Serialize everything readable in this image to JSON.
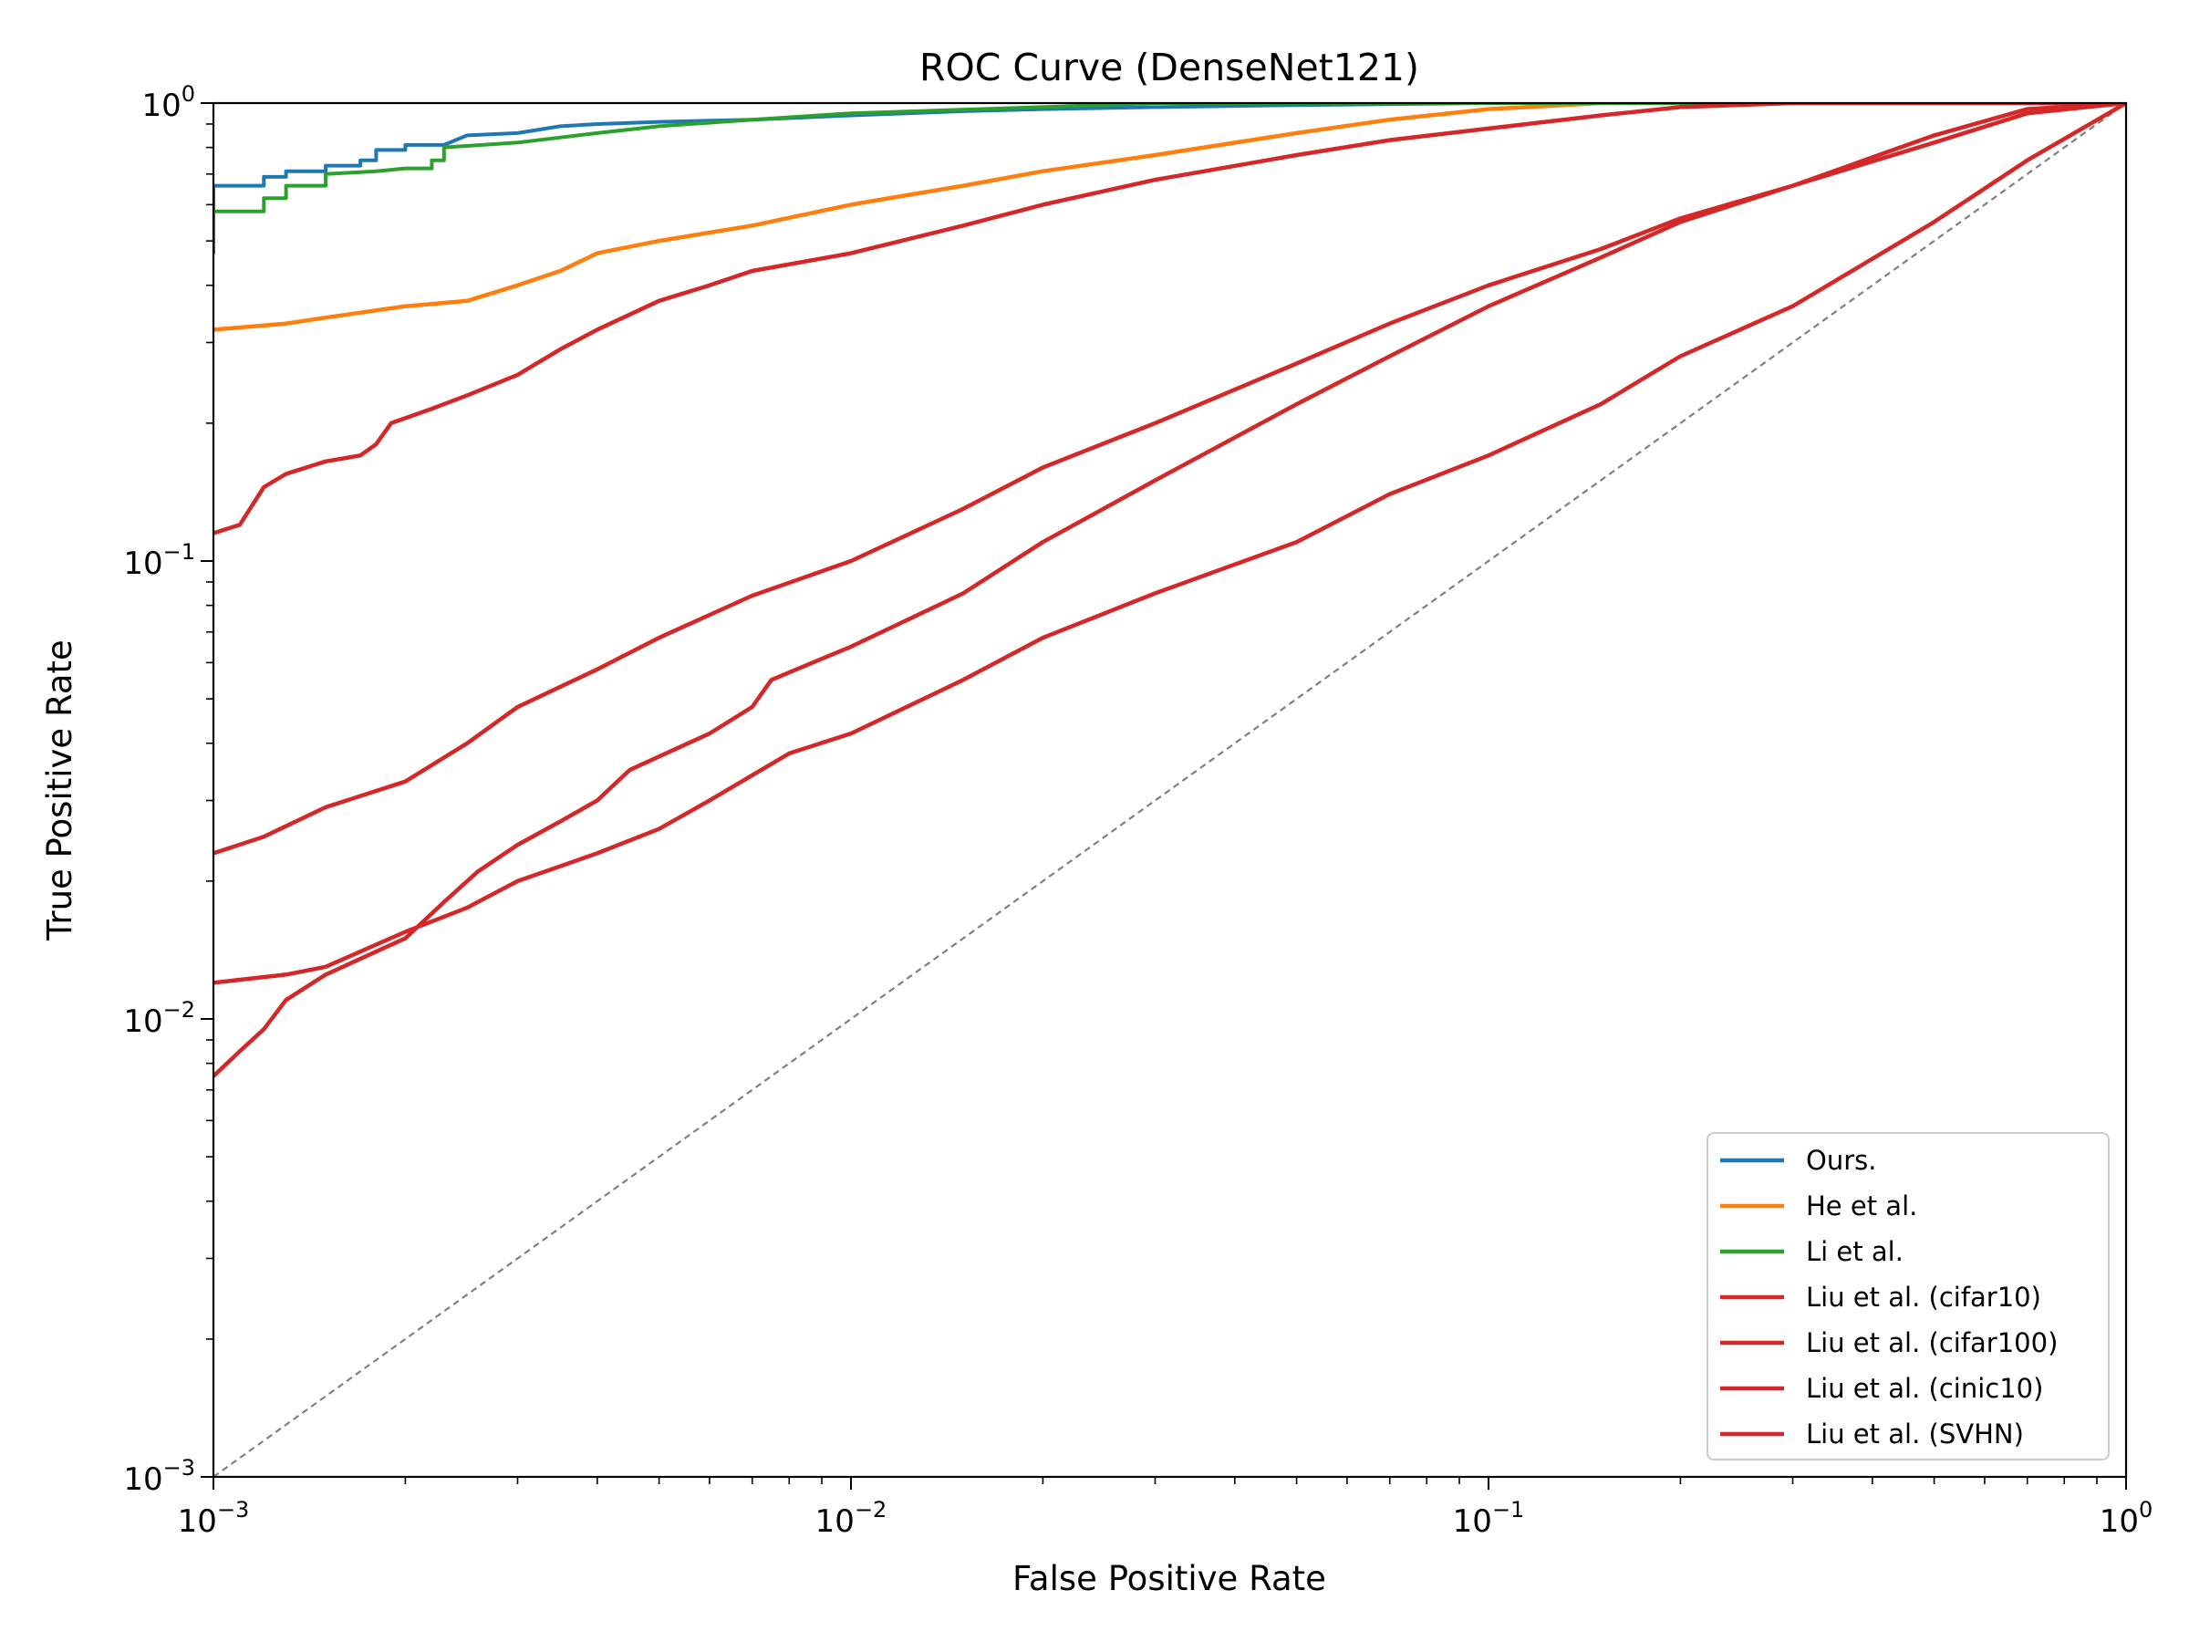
{
  "chart_data": {
    "type": "line",
    "title": "ROC Curve (DenseNet121)",
    "xlabel": "False Positive Rate",
    "ylabel": "True Positive Rate",
    "xscale": "log",
    "yscale": "log",
    "xlim": [
      0.001,
      1
    ],
    "ylim": [
      0.001,
      1
    ],
    "grid": false,
    "legend_position": "lower-right",
    "x_ticks": [
      {
        "base": "10",
        "exp": "−3",
        "value": 0.001
      },
      {
        "base": "10",
        "exp": "−2",
        "value": 0.01
      },
      {
        "base": "10",
        "exp": "−1",
        "value": 0.1
      },
      {
        "base": "10",
        "exp": "0",
        "value": 1
      }
    ],
    "y_ticks": [
      {
        "base": "10",
        "exp": "−3",
        "value": 0.001
      },
      {
        "base": "10",
        "exp": "−2",
        "value": 0.01
      },
      {
        "base": "10",
        "exp": "−1",
        "value": 0.1
      },
      {
        "base": "10",
        "exp": "0",
        "value": 1
      }
    ],
    "diagonal": {
      "color": "#808080",
      "style": "dashed"
    },
    "series": [
      {
        "name": "Ours.",
        "color": "#1f77b4",
        "step": true,
        "points": [
          [
            0.001,
            0.5
          ],
          [
            0.001,
            0.66
          ],
          [
            0.0012,
            0.66
          ],
          [
            0.0012,
            0.69
          ],
          [
            0.0013,
            0.69
          ],
          [
            0.0013,
            0.71
          ],
          [
            0.0015,
            0.71
          ],
          [
            0.0015,
            0.73
          ],
          [
            0.0017,
            0.73
          ],
          [
            0.0017,
            0.75
          ],
          [
            0.0018,
            0.75
          ],
          [
            0.0018,
            0.79
          ],
          [
            0.002,
            0.79
          ],
          [
            0.002,
            0.81
          ],
          [
            0.0023,
            0.81
          ],
          [
            0.0025,
            0.85
          ],
          [
            0.003,
            0.86
          ],
          [
            0.0035,
            0.89
          ],
          [
            0.004,
            0.9
          ],
          [
            0.005,
            0.91
          ],
          [
            0.007,
            0.92
          ],
          [
            0.01,
            0.94
          ],
          [
            0.015,
            0.96
          ],
          [
            0.02,
            0.97
          ],
          [
            0.03,
            0.98
          ],
          [
            0.05,
            0.99
          ],
          [
            0.1,
            1.0
          ],
          [
            1,
            1.0
          ]
        ]
      },
      {
        "name": "He et al.",
        "color": "#ff7f0e",
        "step": false,
        "points": [
          [
            0.001,
            0.32
          ],
          [
            0.0013,
            0.33
          ],
          [
            0.0015,
            0.34
          ],
          [
            0.002,
            0.36
          ],
          [
            0.0025,
            0.37
          ],
          [
            0.003,
            0.4
          ],
          [
            0.0035,
            0.43
          ],
          [
            0.004,
            0.47
          ],
          [
            0.005,
            0.5
          ],
          [
            0.007,
            0.54
          ],
          [
            0.01,
            0.6
          ],
          [
            0.015,
            0.66
          ],
          [
            0.02,
            0.71
          ],
          [
            0.03,
            0.77
          ],
          [
            0.05,
            0.86
          ],
          [
            0.07,
            0.92
          ],
          [
            0.1,
            0.97
          ],
          [
            0.15,
            1.0
          ],
          [
            1,
            1.0
          ]
        ]
      },
      {
        "name": "Li et al.",
        "color": "#2ca02c",
        "step": true,
        "points": [
          [
            0.001,
            0.47
          ],
          [
            0.001,
            0.58
          ],
          [
            0.0012,
            0.58
          ],
          [
            0.0012,
            0.62
          ],
          [
            0.0013,
            0.62
          ],
          [
            0.0013,
            0.66
          ],
          [
            0.0015,
            0.66
          ],
          [
            0.0015,
            0.7
          ],
          [
            0.0018,
            0.71
          ],
          [
            0.002,
            0.72
          ],
          [
            0.0022,
            0.72
          ],
          [
            0.0022,
            0.75
          ],
          [
            0.0023,
            0.75
          ],
          [
            0.0023,
            0.8
          ],
          [
            0.003,
            0.82
          ],
          [
            0.004,
            0.86
          ],
          [
            0.005,
            0.89
          ],
          [
            0.007,
            0.92
          ],
          [
            0.01,
            0.95
          ],
          [
            0.02,
            0.98
          ],
          [
            0.03,
            1.0
          ],
          [
            1,
            1.0
          ]
        ]
      },
      {
        "name": "Liu et al. (cifar10)",
        "color": "#d62728",
        "step": false,
        "points": [
          [
            0.001,
            0.115
          ],
          [
            0.0011,
            0.12
          ],
          [
            0.0012,
            0.145
          ],
          [
            0.0013,
            0.155
          ],
          [
            0.0015,
            0.165
          ],
          [
            0.0017,
            0.17
          ],
          [
            0.0018,
            0.18
          ],
          [
            0.0019,
            0.2
          ],
          [
            0.0022,
            0.215
          ],
          [
            0.0025,
            0.23
          ],
          [
            0.003,
            0.255
          ],
          [
            0.0035,
            0.29
          ],
          [
            0.004,
            0.32
          ],
          [
            0.005,
            0.37
          ],
          [
            0.006,
            0.4
          ],
          [
            0.007,
            0.43
          ],
          [
            0.01,
            0.47
          ],
          [
            0.015,
            0.54
          ],
          [
            0.02,
            0.6
          ],
          [
            0.03,
            0.68
          ],
          [
            0.05,
            0.77
          ],
          [
            0.07,
            0.83
          ],
          [
            0.1,
            0.88
          ],
          [
            0.15,
            0.94
          ],
          [
            0.2,
            0.98
          ],
          [
            0.3,
            1.0
          ],
          [
            1,
            1.0
          ]
        ]
      },
      {
        "name": "Liu et al. (cifar100)",
        "color": "#d62728",
        "step": false,
        "points": [
          [
            0.001,
            0.023
          ],
          [
            0.0012,
            0.025
          ],
          [
            0.0015,
            0.029
          ],
          [
            0.002,
            0.033
          ],
          [
            0.0025,
            0.04
          ],
          [
            0.003,
            0.048
          ],
          [
            0.004,
            0.058
          ],
          [
            0.005,
            0.068
          ],
          [
            0.007,
            0.084
          ],
          [
            0.01,
            0.1
          ],
          [
            0.015,
            0.13
          ],
          [
            0.02,
            0.16
          ],
          [
            0.03,
            0.2
          ],
          [
            0.05,
            0.27
          ],
          [
            0.07,
            0.33
          ],
          [
            0.1,
            0.4
          ],
          [
            0.15,
            0.48
          ],
          [
            0.2,
            0.56
          ],
          [
            0.3,
            0.66
          ],
          [
            0.5,
            0.82
          ],
          [
            0.7,
            0.95
          ],
          [
            1,
            1.0
          ]
        ]
      },
      {
        "name": "Liu et al. (cinic10)",
        "color": "#d62728",
        "step": false,
        "points": [
          [
            0.001,
            0.0075
          ],
          [
            0.0011,
            0.0085
          ],
          [
            0.0012,
            0.0095
          ],
          [
            0.0013,
            0.011
          ],
          [
            0.0015,
            0.0125
          ],
          [
            0.002,
            0.015
          ],
          [
            0.0023,
            0.018
          ],
          [
            0.0026,
            0.021
          ],
          [
            0.003,
            0.024
          ],
          [
            0.0035,
            0.027
          ],
          [
            0.004,
            0.03
          ],
          [
            0.0045,
            0.035
          ],
          [
            0.006,
            0.042
          ],
          [
            0.007,
            0.048
          ],
          [
            0.0075,
            0.055
          ],
          [
            0.01,
            0.065
          ],
          [
            0.015,
            0.085
          ],
          [
            0.02,
            0.11
          ],
          [
            0.03,
            0.15
          ],
          [
            0.05,
            0.22
          ],
          [
            0.07,
            0.28
          ],
          [
            0.1,
            0.36
          ],
          [
            0.15,
            0.46
          ],
          [
            0.2,
            0.55
          ],
          [
            0.3,
            0.66
          ],
          [
            0.5,
            0.85
          ],
          [
            0.7,
            0.97
          ],
          [
            1,
            1.0
          ]
        ]
      },
      {
        "name": "Liu et al. (SVHN)",
        "color": "#d62728",
        "step": false,
        "points": [
          [
            0.001,
            0.012
          ],
          [
            0.0013,
            0.0125
          ],
          [
            0.0015,
            0.013
          ],
          [
            0.002,
            0.0155
          ],
          [
            0.0025,
            0.0175
          ],
          [
            0.003,
            0.02
          ],
          [
            0.004,
            0.023
          ],
          [
            0.005,
            0.026
          ],
          [
            0.006,
            0.03
          ],
          [
            0.008,
            0.038
          ],
          [
            0.01,
            0.042
          ],
          [
            0.015,
            0.055
          ],
          [
            0.02,
            0.068
          ],
          [
            0.03,
            0.085
          ],
          [
            0.05,
            0.11
          ],
          [
            0.07,
            0.14
          ],
          [
            0.1,
            0.17
          ],
          [
            0.15,
            0.22
          ],
          [
            0.2,
            0.28
          ],
          [
            0.3,
            0.36
          ],
          [
            0.5,
            0.55
          ],
          [
            0.7,
            0.75
          ],
          [
            1,
            1.0
          ]
        ]
      }
    ]
  }
}
